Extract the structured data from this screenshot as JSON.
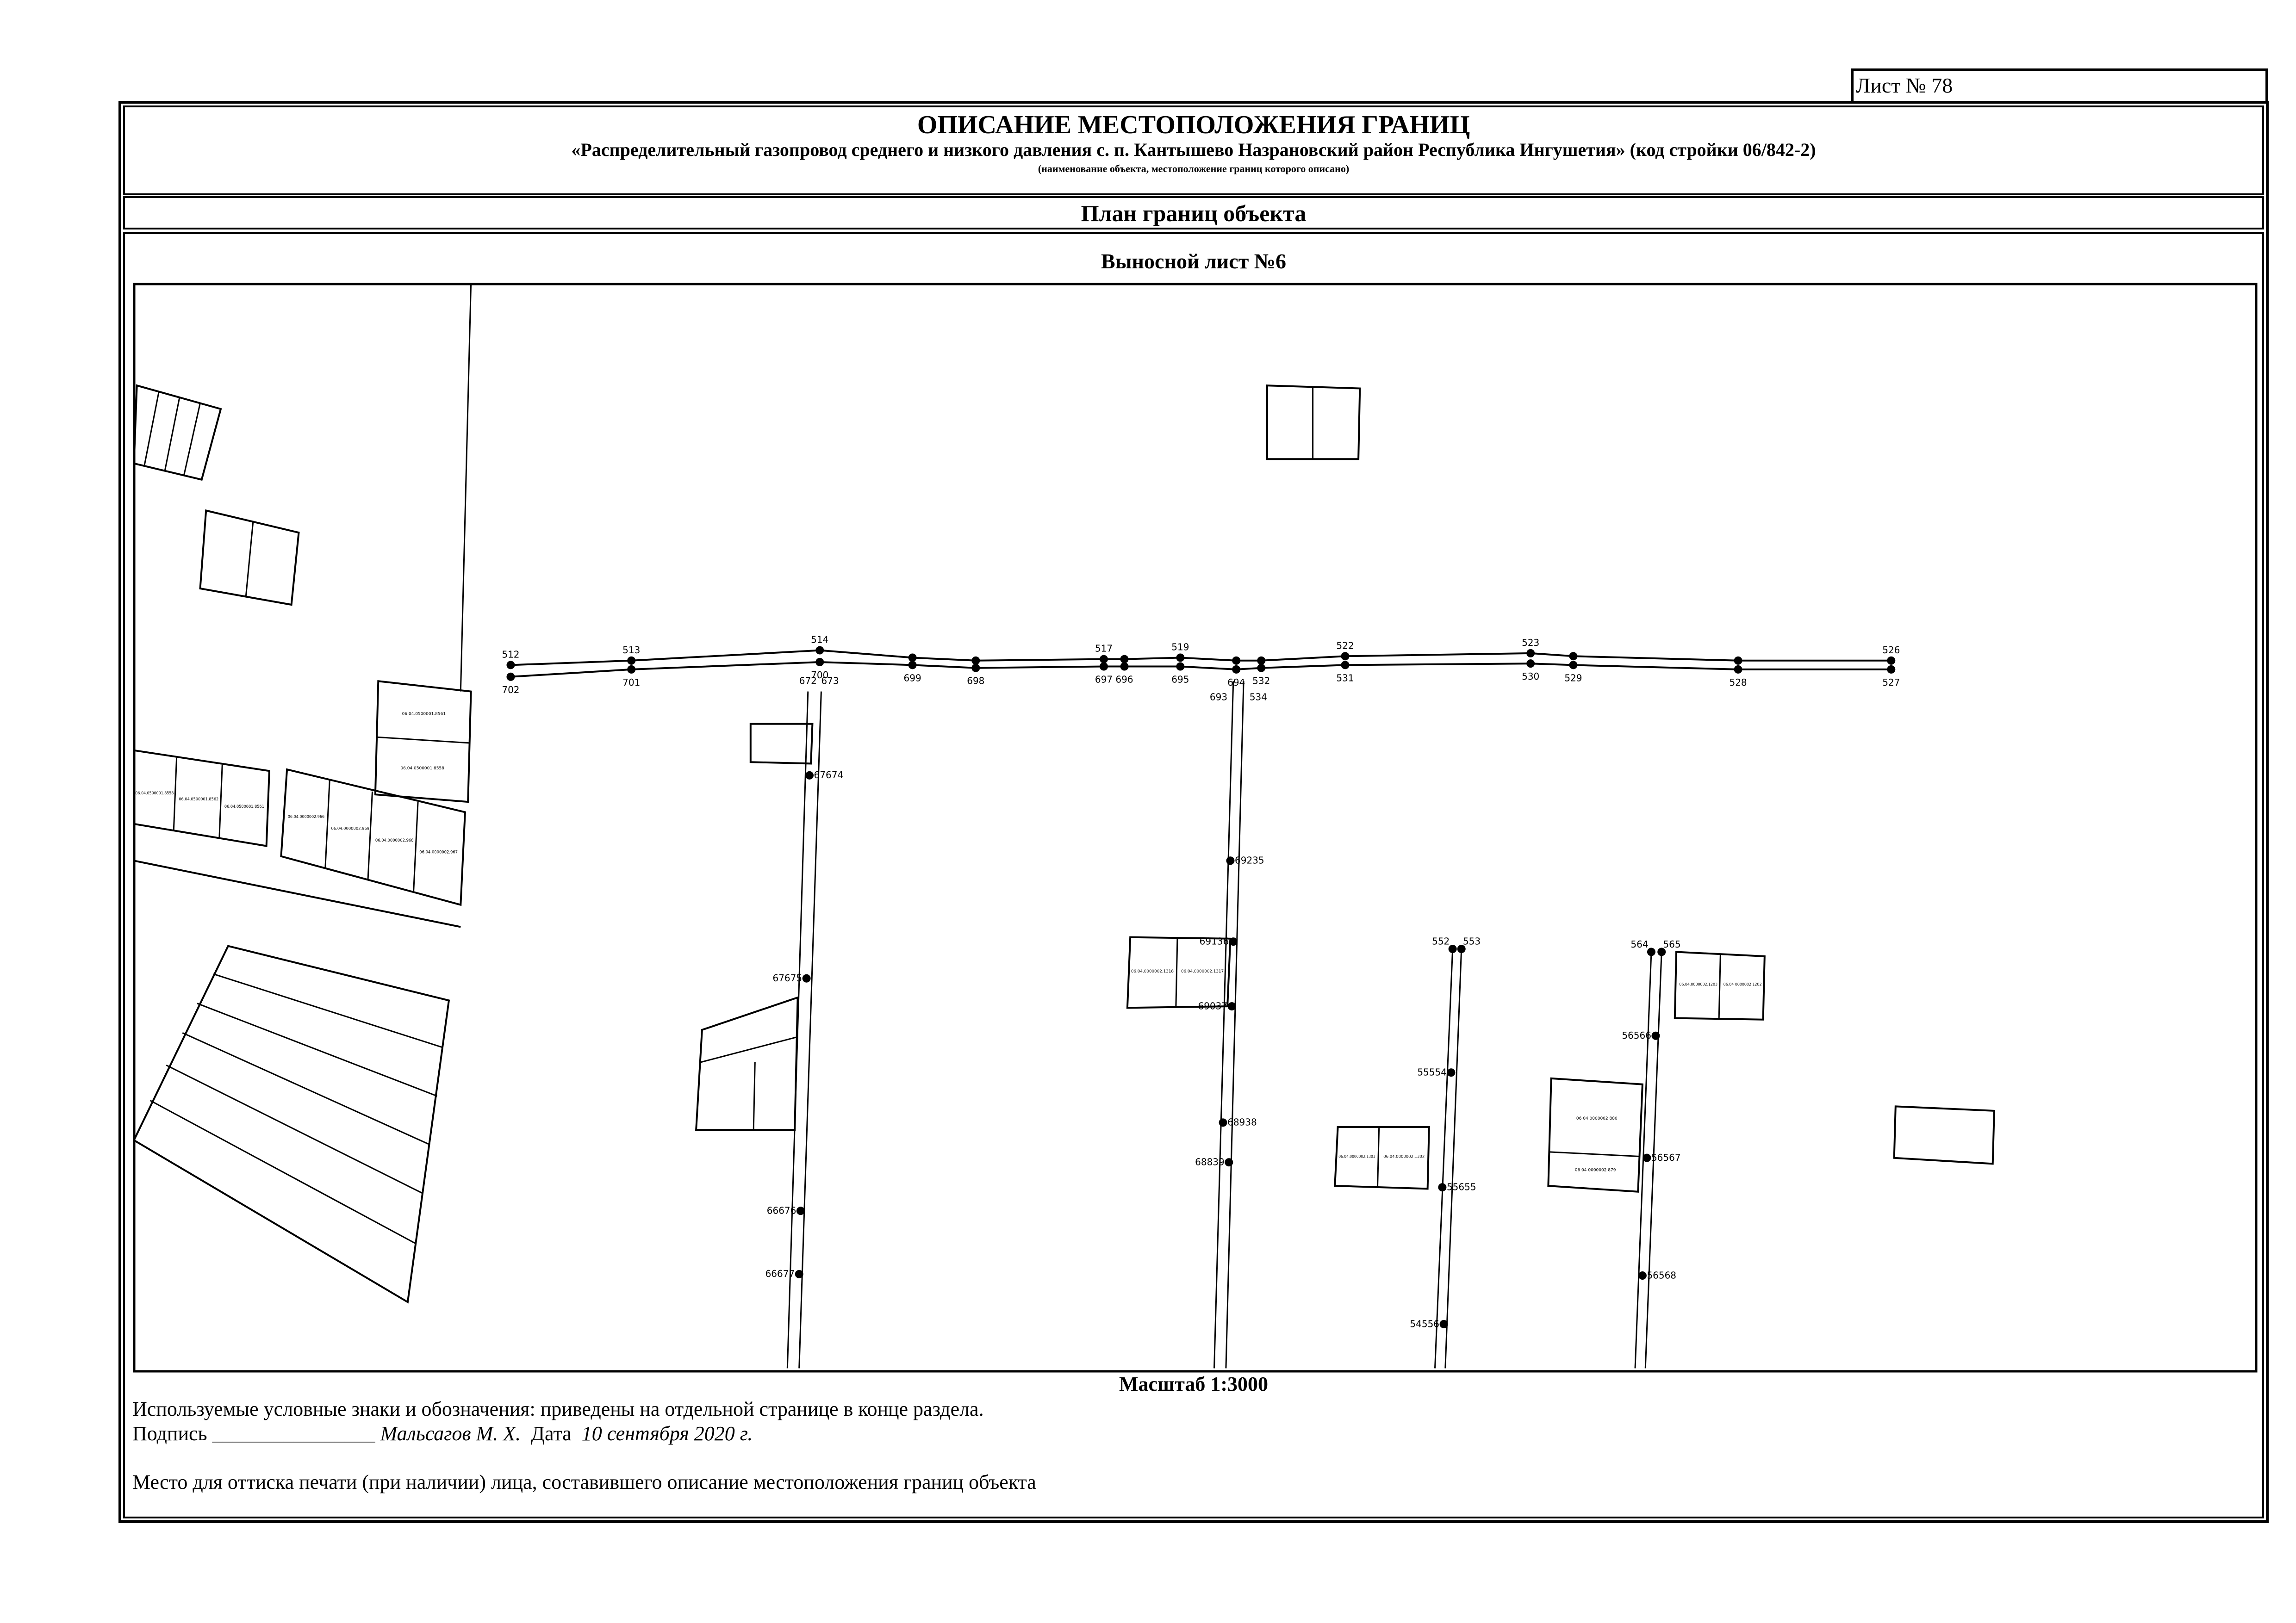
{
  "sheet_label": "Лист № 78",
  "header": {
    "title": "ОПИСАНИЕ МЕСТОПОЛОЖЕНИЯ ГРАНИЦ",
    "subtitle": "«Распределительный газопровод среднего и низкого давления с. п. Кантышево Назрановский район Республика Ингушетия» (код стройки 06/842-2)",
    "note": "(наименование объекта, местоположение границ которого описано)"
  },
  "plan_title": "План границ объекта",
  "map": {
    "title": "Выносной лист №6",
    "scale": "Масштаб 1:3000",
    "top_road_upper_labels": [
      "512",
      "513",
      "514",
      "",
      "",
      "517",
      "",
      "519",
      "",
      "",
      "522",
      "523",
      "",
      "",
      "526"
    ],
    "top_road_lower_labels": [
      "702",
      "701",
      "700",
      "699",
      "698",
      "697",
      "696",
      "695",
      "694",
      "532",
      "531",
      "530",
      "529",
      "528",
      "527"
    ],
    "junction_labels": [
      "672",
      "673",
      "693",
      "534"
    ],
    "vertical_labels": [
      "67674",
      "67675",
      "66676",
      "66677",
      "69235",
      "69136",
      "69037",
      "68938",
      "68839",
      "552",
      "553",
      "55554",
      "55655",
      "54556",
      "564",
      "565",
      "56566",
      "56567",
      "56568"
    ],
    "parcels": [
      "06.04.0500001.8561",
      "06.04.0500001.8558",
      "06.04.0500001.8558",
      "06.04.0500001.8562",
      "06.04.0500001.8561",
      "06.04.0000002.966",
      "06.04.0000002.969",
      "06.04.0000002.968",
      "06.04.0000002.967",
      "06.04.0000002.1318",
      "06.04.0000002.1317",
      "06.04.0000002.1303",
      "06.04.0000002.1302",
      "06 04 0000002 880",
      "06 04 0000002 879",
      "06.04.0000002.1203",
      "06.04 0000002 1202"
    ]
  },
  "footer": {
    "legend_text": "Используемые условные знаки и обозначения: приведены на отдельной странице в конце раздела.",
    "signature_label": "Подпись",
    "signature_line": "________________",
    "signer": "Мальсагов М. Х.",
    "date_label": "Дата",
    "date": "10 сентября 2020 г.",
    "stamp_text": "Место для оттиска печати (при наличии) лица, составившего описание местоположения границ объекта"
  }
}
